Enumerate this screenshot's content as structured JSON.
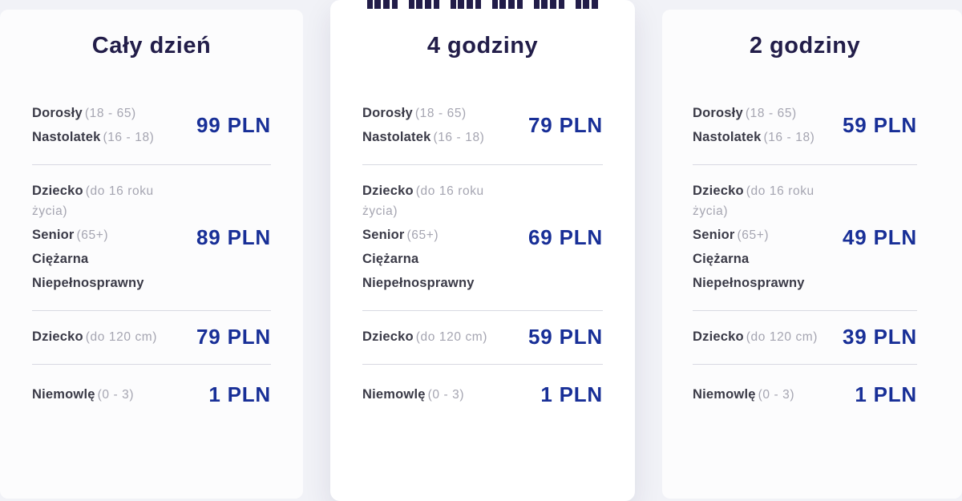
{
  "colors": {
    "page_background": "#f1f2f7",
    "card_background": "#fcfcfd",
    "highlight_card_background": "#ffffff",
    "heading_navy": "#221d49",
    "label_dark": "#3a3a47",
    "note_gray": "#a5a5b1",
    "price_blue": "#182f97",
    "divider": "#d8d9e2"
  },
  "columns": [
    {
      "title": "Cały dzień",
      "highlighted": false,
      "groups": [
        {
          "labels": [
            {
              "name": "Dorosły",
              "note": "(18 - 65)"
            },
            {
              "name": "Nastolatek",
              "note": "(16 - 18)"
            }
          ],
          "price": "99 PLN"
        },
        {
          "labels": [
            {
              "name": "Dziecko",
              "note": "(do 16 roku życia)"
            },
            {
              "name": "Senior",
              "note": "(65+)"
            },
            {
              "name": "Ciężarna",
              "note": ""
            },
            {
              "name": "Niepełnosprawny",
              "note": ""
            }
          ],
          "price": "89 PLN"
        },
        {
          "labels": [
            {
              "name": "Dziecko",
              "note": "(do 120 cm)"
            }
          ],
          "price": "79 PLN"
        },
        {
          "labels": [
            {
              "name": "Niemowlę",
              "note": "(0 - 3)"
            }
          ],
          "price": "1 PLN"
        }
      ]
    },
    {
      "title": "4 godziny",
      "highlighted": true,
      "groups": [
        {
          "labels": [
            {
              "name": "Dorosły",
              "note": "(18 - 65)"
            },
            {
              "name": "Nastolatek",
              "note": "(16 - 18)"
            }
          ],
          "price": "79 PLN"
        },
        {
          "labels": [
            {
              "name": "Dziecko",
              "note": "(do 16 roku życia)"
            },
            {
              "name": "Senior",
              "note": "(65+)"
            },
            {
              "name": "Ciężarna",
              "note": ""
            },
            {
              "name": "Niepełnosprawny",
              "note": ""
            }
          ],
          "price": "69 PLN"
        },
        {
          "labels": [
            {
              "name": "Dziecko",
              "note": "(do 120 cm)"
            }
          ],
          "price": "59 PLN"
        },
        {
          "labels": [
            {
              "name": "Niemowlę",
              "note": "(0 - 3)"
            }
          ],
          "price": "1 PLN"
        }
      ]
    },
    {
      "title": "2 godziny",
      "highlighted": false,
      "groups": [
        {
          "labels": [
            {
              "name": "Dorosły",
              "note": "(18 - 65)"
            },
            {
              "name": "Nastolatek",
              "note": "(16 - 18)"
            }
          ],
          "price": "59 PLN"
        },
        {
          "labels": [
            {
              "name": "Dziecko",
              "note": "(do 16 roku życia)"
            },
            {
              "name": "Senior",
              "note": "(65+)"
            },
            {
              "name": "Ciężarna",
              "note": ""
            },
            {
              "name": "Niepełnosprawny",
              "note": ""
            }
          ],
          "price": "49 PLN"
        },
        {
          "labels": [
            {
              "name": "Dziecko",
              "note": "(do 120 cm)"
            }
          ],
          "price": "39 PLN"
        },
        {
          "labels": [
            {
              "name": "Niemowlę",
              "note": "(0 - 3)"
            }
          ],
          "price": "1 PLN"
        }
      ]
    }
  ]
}
